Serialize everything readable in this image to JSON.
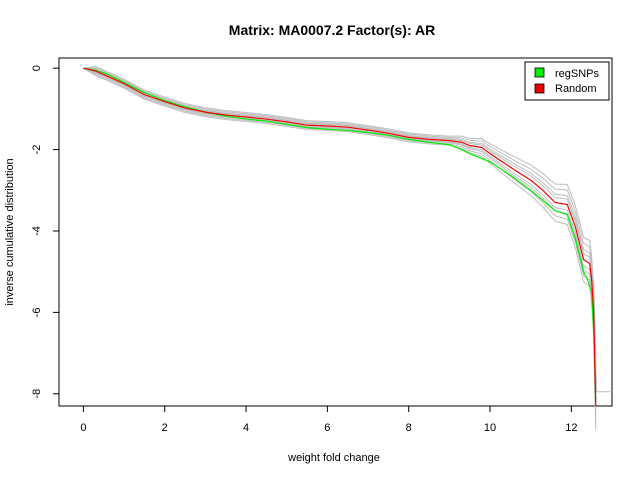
{
  "chart_data": {
    "type": "line",
    "title": "Matrix: MA0007.2 Factor(s): AR",
    "xlabel": "weight fold change",
    "ylabel": "inverse cumulative distribution",
    "xlim": [
      -0.6,
      13.0
    ],
    "ylim": [
      -8.3,
      0.25
    ],
    "x_ticks": [
      0,
      2,
      4,
      6,
      8,
      10,
      12
    ],
    "y_ticks": [
      0,
      -2,
      -4,
      -6,
      -8
    ],
    "grid": false,
    "legend_position": "top-right",
    "series": [
      {
        "name": "regSNPs",
        "color": "#00ee00",
        "x": [
          0.0,
          0.3,
          0.6,
          1.0,
          1.5,
          2.0,
          2.5,
          3.0,
          3.5,
          4.0,
          4.5,
          5.0,
          5.5,
          6.0,
          6.5,
          7.0,
          7.5,
          8.0,
          8.5,
          9.0,
          9.3,
          9.5,
          10.0,
          10.3,
          10.6,
          11.0,
          11.3,
          11.6,
          11.9,
          12.1,
          12.3,
          12.4,
          12.5,
          12.55,
          12.6
        ],
        "y": [
          0.0,
          -0.05,
          -0.15,
          -0.35,
          -0.6,
          -0.8,
          -0.95,
          -1.08,
          -1.18,
          -1.25,
          -1.3,
          -1.38,
          -1.46,
          -1.5,
          -1.53,
          -1.58,
          -1.65,
          -1.75,
          -1.82,
          -1.88,
          -2.0,
          -2.1,
          -2.3,
          -2.5,
          -2.7,
          -3.0,
          -3.25,
          -3.5,
          -3.6,
          -4.2,
          -5.0,
          -5.2,
          -5.5,
          -6.5,
          -8.2
        ]
      },
      {
        "name": "Random",
        "color": "#ee0000",
        "x": [
          0.0,
          0.3,
          0.6,
          1.0,
          1.5,
          2.0,
          2.5,
          3.0,
          3.5,
          4.0,
          4.5,
          5.0,
          5.5,
          6.0,
          6.5,
          7.0,
          7.5,
          8.0,
          8.5,
          9.0,
          9.3,
          9.5,
          9.8,
          10.0,
          10.3,
          10.6,
          11.0,
          11.3,
          11.6,
          11.9,
          12.1,
          12.3,
          12.45,
          12.5,
          12.55,
          12.6
        ],
        "y": [
          0.0,
          -0.07,
          -0.2,
          -0.38,
          -0.65,
          -0.82,
          -0.98,
          -1.08,
          -1.15,
          -1.2,
          -1.25,
          -1.32,
          -1.4,
          -1.42,
          -1.45,
          -1.52,
          -1.6,
          -1.7,
          -1.75,
          -1.78,
          -1.82,
          -1.9,
          -1.95,
          -2.1,
          -2.3,
          -2.5,
          -2.75,
          -3.0,
          -3.3,
          -3.35,
          -3.9,
          -4.7,
          -4.8,
          -5.2,
          -6.0,
          -8.3
        ]
      }
    ],
    "legend": [
      {
        "label": "regSNPs",
        "color": "#00ee00"
      },
      {
        "label": "Random",
        "color": "#ee0000"
      }
    ]
  }
}
